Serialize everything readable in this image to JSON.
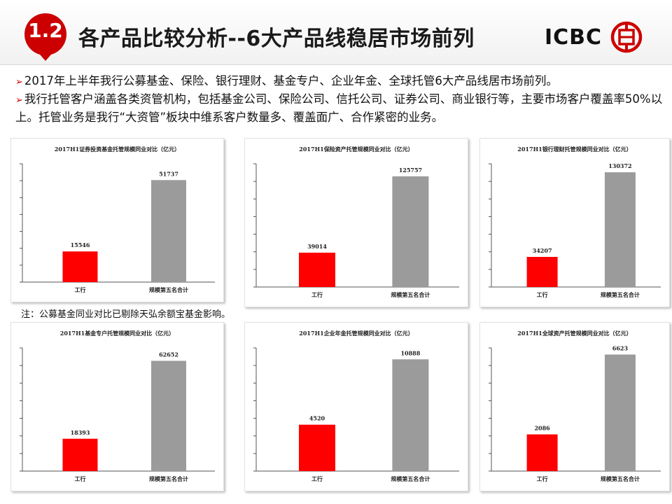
{
  "header": {
    "badge": "1.2",
    "title": "各产品比较分析--6大产品线稳居市场前列",
    "logo_text": "ICBC"
  },
  "intro": {
    "lines": [
      "2017年上半年我行公募基金、保险、银行理财、基金专户、企业年金、全球托管6大产品线居市场前列。",
      "我行托管客户涵盖各类资管机构，包括基金公司、保险公司、信托公司、证券公司、商业银行等，主要市场客户覆盖率50%以上。托管业务是我行“大资管”板块中维系客户数量多、覆盖面广、合作紧密的业务。"
    ]
  },
  "note": "注：公募基金同业对比已剔除天弘余额宝基金影响。",
  "colors": {
    "brand_red": "#cc0000",
    "bar_red": "#ff0000",
    "bar_gray": "#9b9b9b"
  },
  "chart_data": [
    {
      "type": "bar",
      "title": "2017H1证券投资基金托管规模同业对比（亿元）",
      "categories": [
        "工行",
        "规模第五名合计"
      ],
      "values": [
        15546,
        51737
      ],
      "ylim": [
        0,
        60000
      ]
    },
    {
      "type": "bar",
      "title": "2017H1保险资产托管规模同业对比（亿元）",
      "categories": [
        "工行",
        "规模第五名合计"
      ],
      "values": [
        39014,
        125757
      ],
      "ylim": [
        0,
        140000
      ]
    },
    {
      "type": "bar",
      "title": "2017H1银行理财托管规模同业对比（亿元）",
      "categories": [
        "工行",
        "规模第五名合计"
      ],
      "values": [
        34207,
        130372
      ],
      "ylim": [
        0,
        140000
      ]
    },
    {
      "type": "bar",
      "title": "2017H1基金专户托管规模同业对比（亿元）",
      "categories": [
        "工行",
        "规模第五名合计"
      ],
      "values": [
        18393,
        62652
      ],
      "ylim": [
        0,
        70000
      ]
    },
    {
      "type": "bar",
      "title": "2017H1企业年金托管规模同业对比（亿元）",
      "categories": [
        "工行",
        "规模第五名合计"
      ],
      "values": [
        4520,
        10888
      ],
      "ylim": [
        0,
        12000
      ]
    },
    {
      "type": "bar",
      "title": "2017H1全球资产托管规模同业对比（亿元）",
      "categories": [
        "工行",
        "规模第五名合计"
      ],
      "values": [
        2086,
        6623
      ],
      "ylim": [
        0,
        7000
      ]
    }
  ]
}
